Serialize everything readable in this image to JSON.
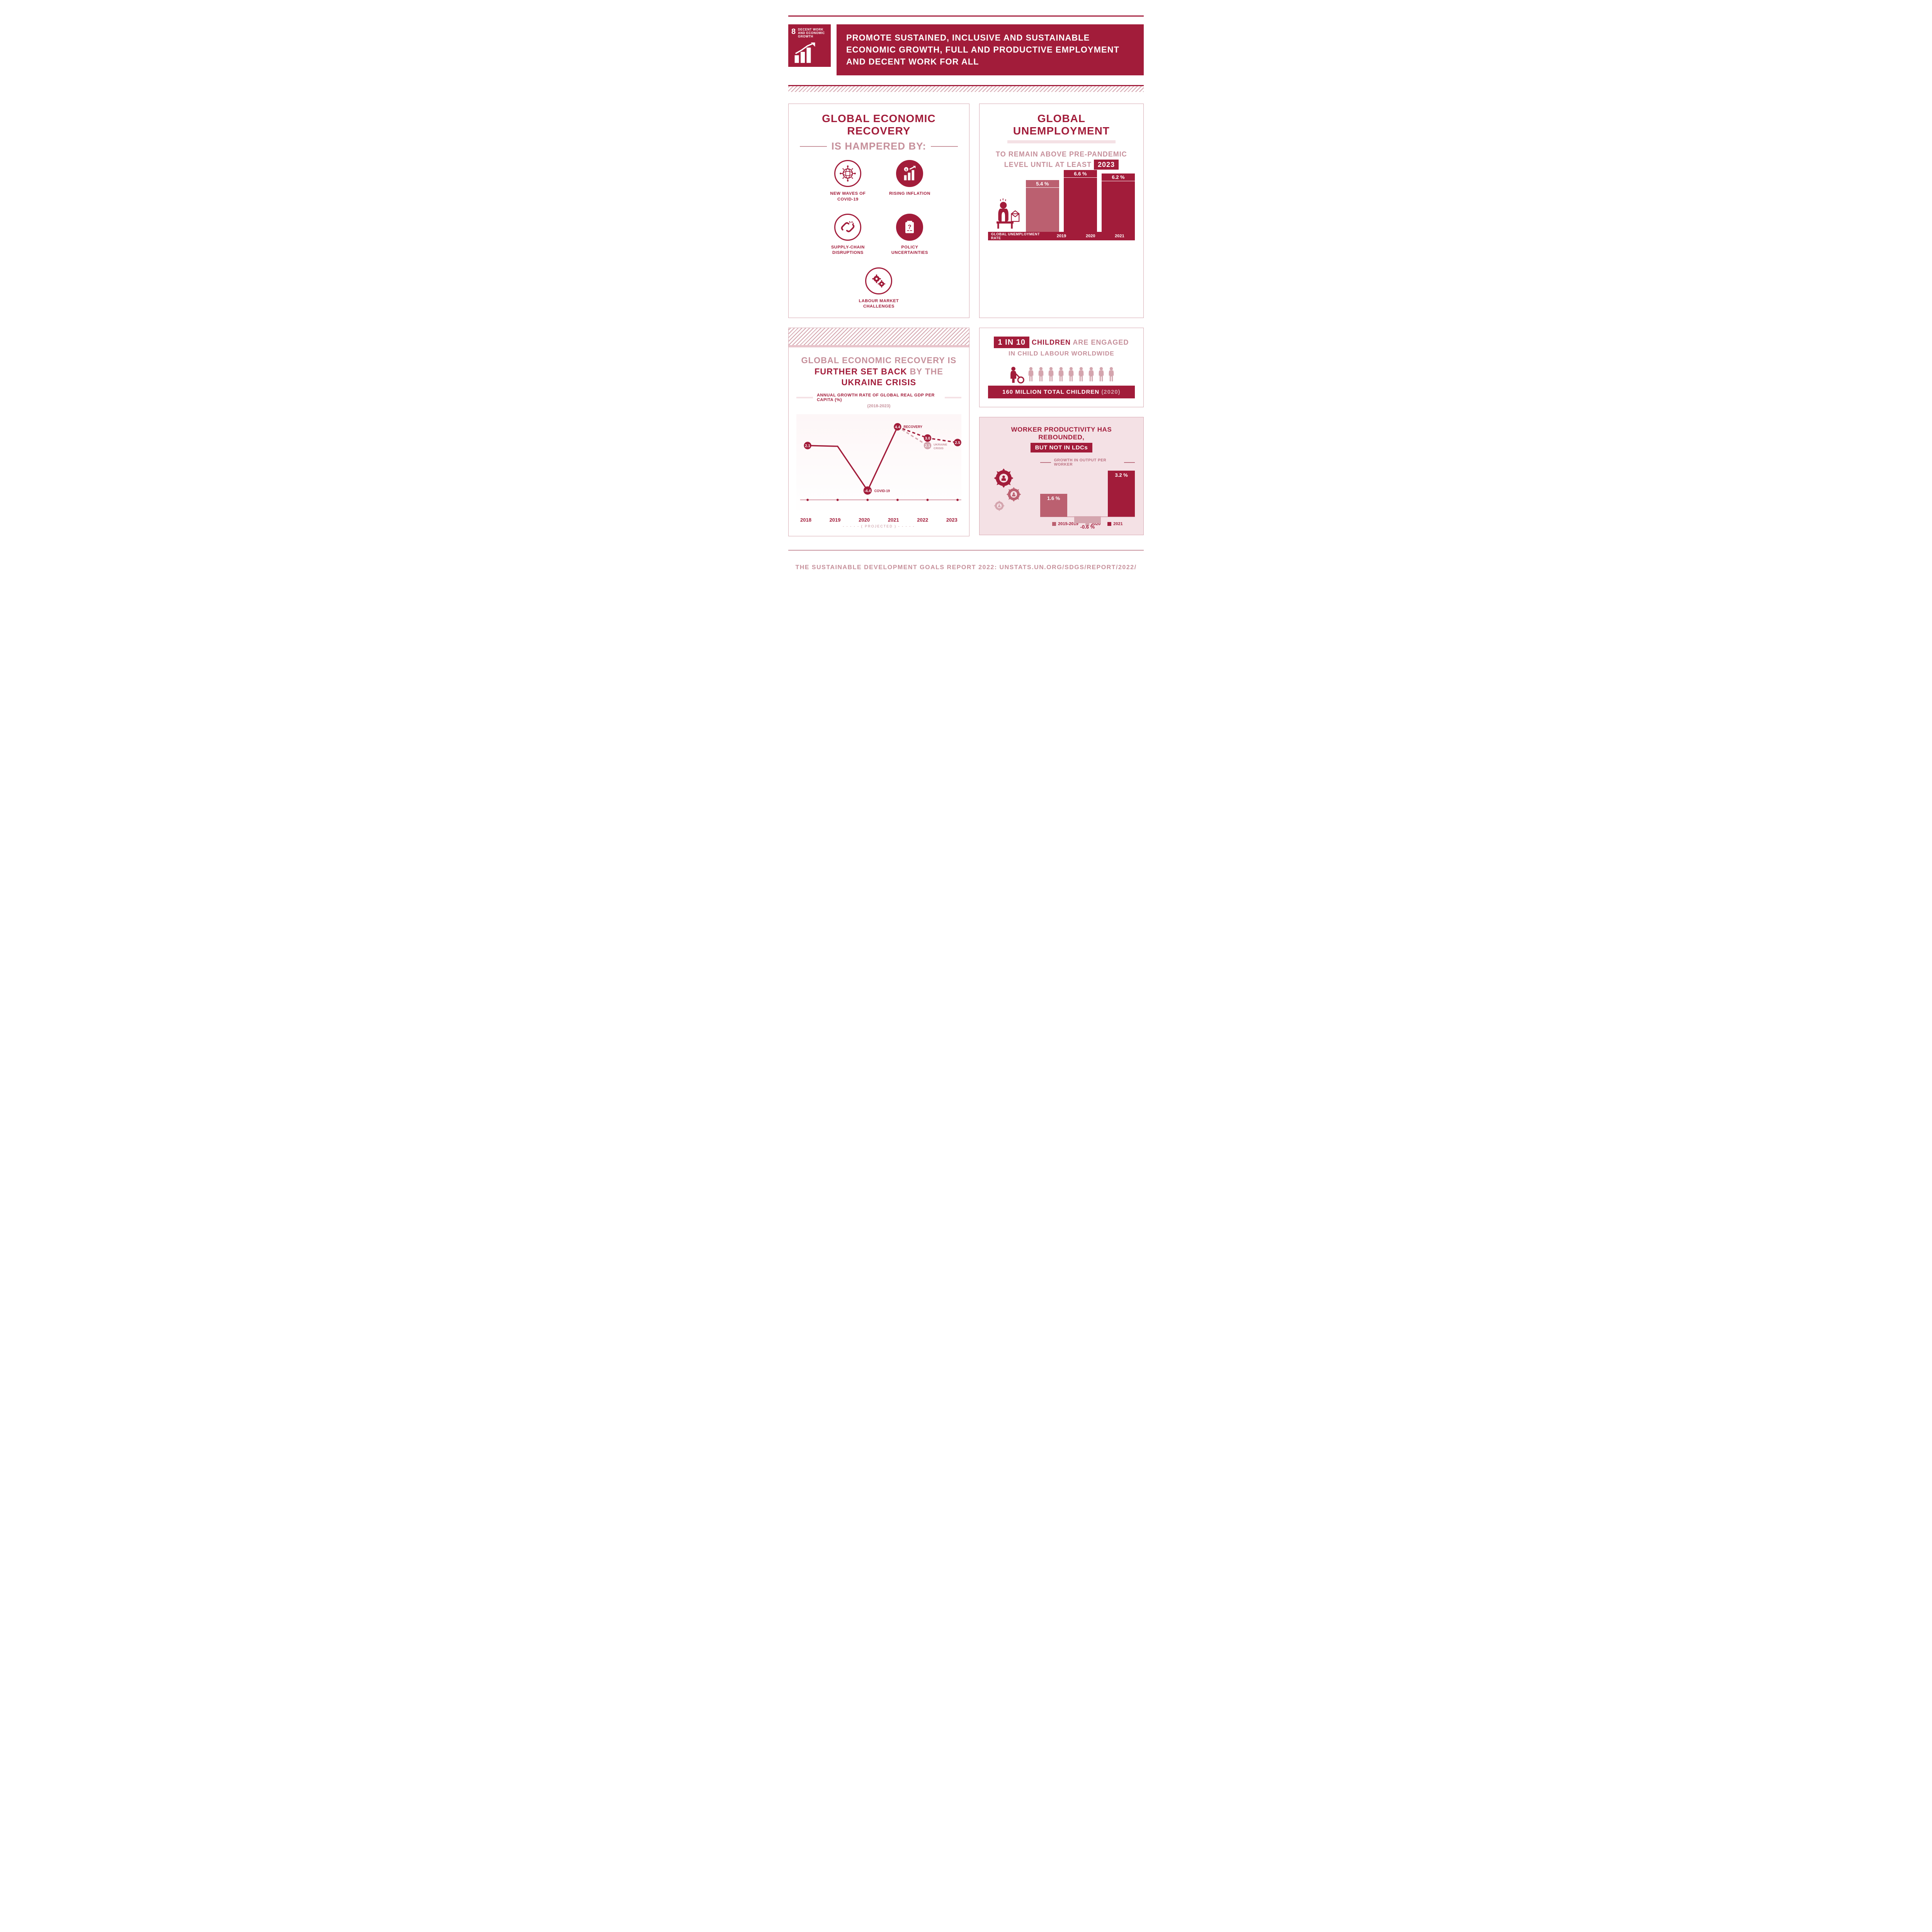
{
  "colors": {
    "primary": "#a21c3a",
    "light": "#c6909b",
    "lighter": "#d4a5ae",
    "palest": "#f4e1e5",
    "mid": "#bb6070"
  },
  "sdg": {
    "number": "8",
    "label": "DECENT WORK AND ECONOMIC GROWTH"
  },
  "header_title": "PROMOTE SUSTAINED, INCLUSIVE AND SUSTAINABLE ECONOMIC GROWTH, FULL AND PRODUCTIVE EMPLOYMENT AND DECENT WORK FOR ALL",
  "recovery": {
    "title1": "GLOBAL ECONOMIC RECOVERY",
    "title2": "IS HAMPERED BY:",
    "items": [
      {
        "label": "NEW WAVES OF COVID-19"
      },
      {
        "label": "RISING INFLATION"
      },
      {
        "label": "SUPPLY-CHAIN DISRUPTIONS"
      },
      {
        "label": "POLICY UNCERTAINTIES"
      },
      {
        "label": "LABOUR MARKET CHALLENGES"
      }
    ]
  },
  "unemployment": {
    "title": "GLOBAL UNEMPLOYMENT",
    "subtitle_pre": "TO REMAIN ABOVE PRE-PANDEMIC LEVEL UNTIL AT LEAST",
    "subtitle_badge": "2023",
    "base_label": "GLOBAL UNEMPLOYMENT RATE",
    "bars": [
      {
        "year": "2019",
        "value": "5.4 %",
        "height": 82,
        "color": "#bb6070"
      },
      {
        "year": "2020",
        "value": "6.6 %",
        "height": 100,
        "color": "#a21c3a"
      },
      {
        "year": "2021",
        "value": "6.2 %",
        "height": 94,
        "color": "#a21c3a"
      }
    ]
  },
  "childlabour": {
    "badge": "1 IN 10",
    "line1_dark": "CHILDREN",
    "line1_light": "ARE ENGAGED",
    "line2": "IN CHILD LABOUR WORLDWIDE",
    "base_pre": "160 MILLION TOTAL CHILDREN",
    "base_yr": "(2020)"
  },
  "gdp": {
    "title_light": "GLOBAL ECONOMIC RECOVERY",
    "title_light2": "IS",
    "title_dark1": "FURTHER SET BACK",
    "title_light3": "BY THE",
    "title_dark2": "UKRAINE CRISIS",
    "chart_label": "ANNUAL GROWTH RATE OF GLOBAL REAL GDP PER CAPITA (%)",
    "chart_sublabel": "(2018-2023)",
    "years": [
      "2018",
      "2019",
      "2020",
      "2021",
      "2022",
      "2023"
    ],
    "projected": "( PROJECTED )",
    "points": {
      "2018": 2.1,
      "2019": 2.0,
      "2020": -4.4,
      "2021": 4.4,
      "recovery_2022": 3.0,
      "recovery_2023": 2.5,
      "ukraine_2022": 2.1
    },
    "annotations": {
      "p2018": "2.1",
      "p2020": "-4.4",
      "p2021": "4.4",
      "covid": "COVID-19",
      "recovery": "RECOVERY",
      "rec2022": "3.0",
      "rec2023": "2.5",
      "ukr2022": "2.1",
      "ukraine": "UKRAINE CRISIS"
    }
  },
  "productivity": {
    "title": "WORKER PRODUCTIVITY HAS REBOUNDED,",
    "badge": "BUT NOT IN LDCs",
    "chart_label": "GROWTH IN OUTPUT PER WORKER",
    "bars": [
      {
        "period": "2015-2019",
        "value": "1.6 %",
        "height": 50,
        "color": "#bb6070",
        "neg": false
      },
      {
        "period": "2020",
        "value": "-0.6 %",
        "height": 18,
        "color": "#d4a5ae",
        "neg": true
      },
      {
        "period": "2021",
        "value": "3.2 %",
        "height": 100,
        "color": "#a21c3a",
        "neg": false
      }
    ]
  },
  "footer": "THE SUSTAINABLE DEVELOPMENT GOALS REPORT 2022: UNSTATS.UN.ORG/SDGS/REPORT/2022/"
}
